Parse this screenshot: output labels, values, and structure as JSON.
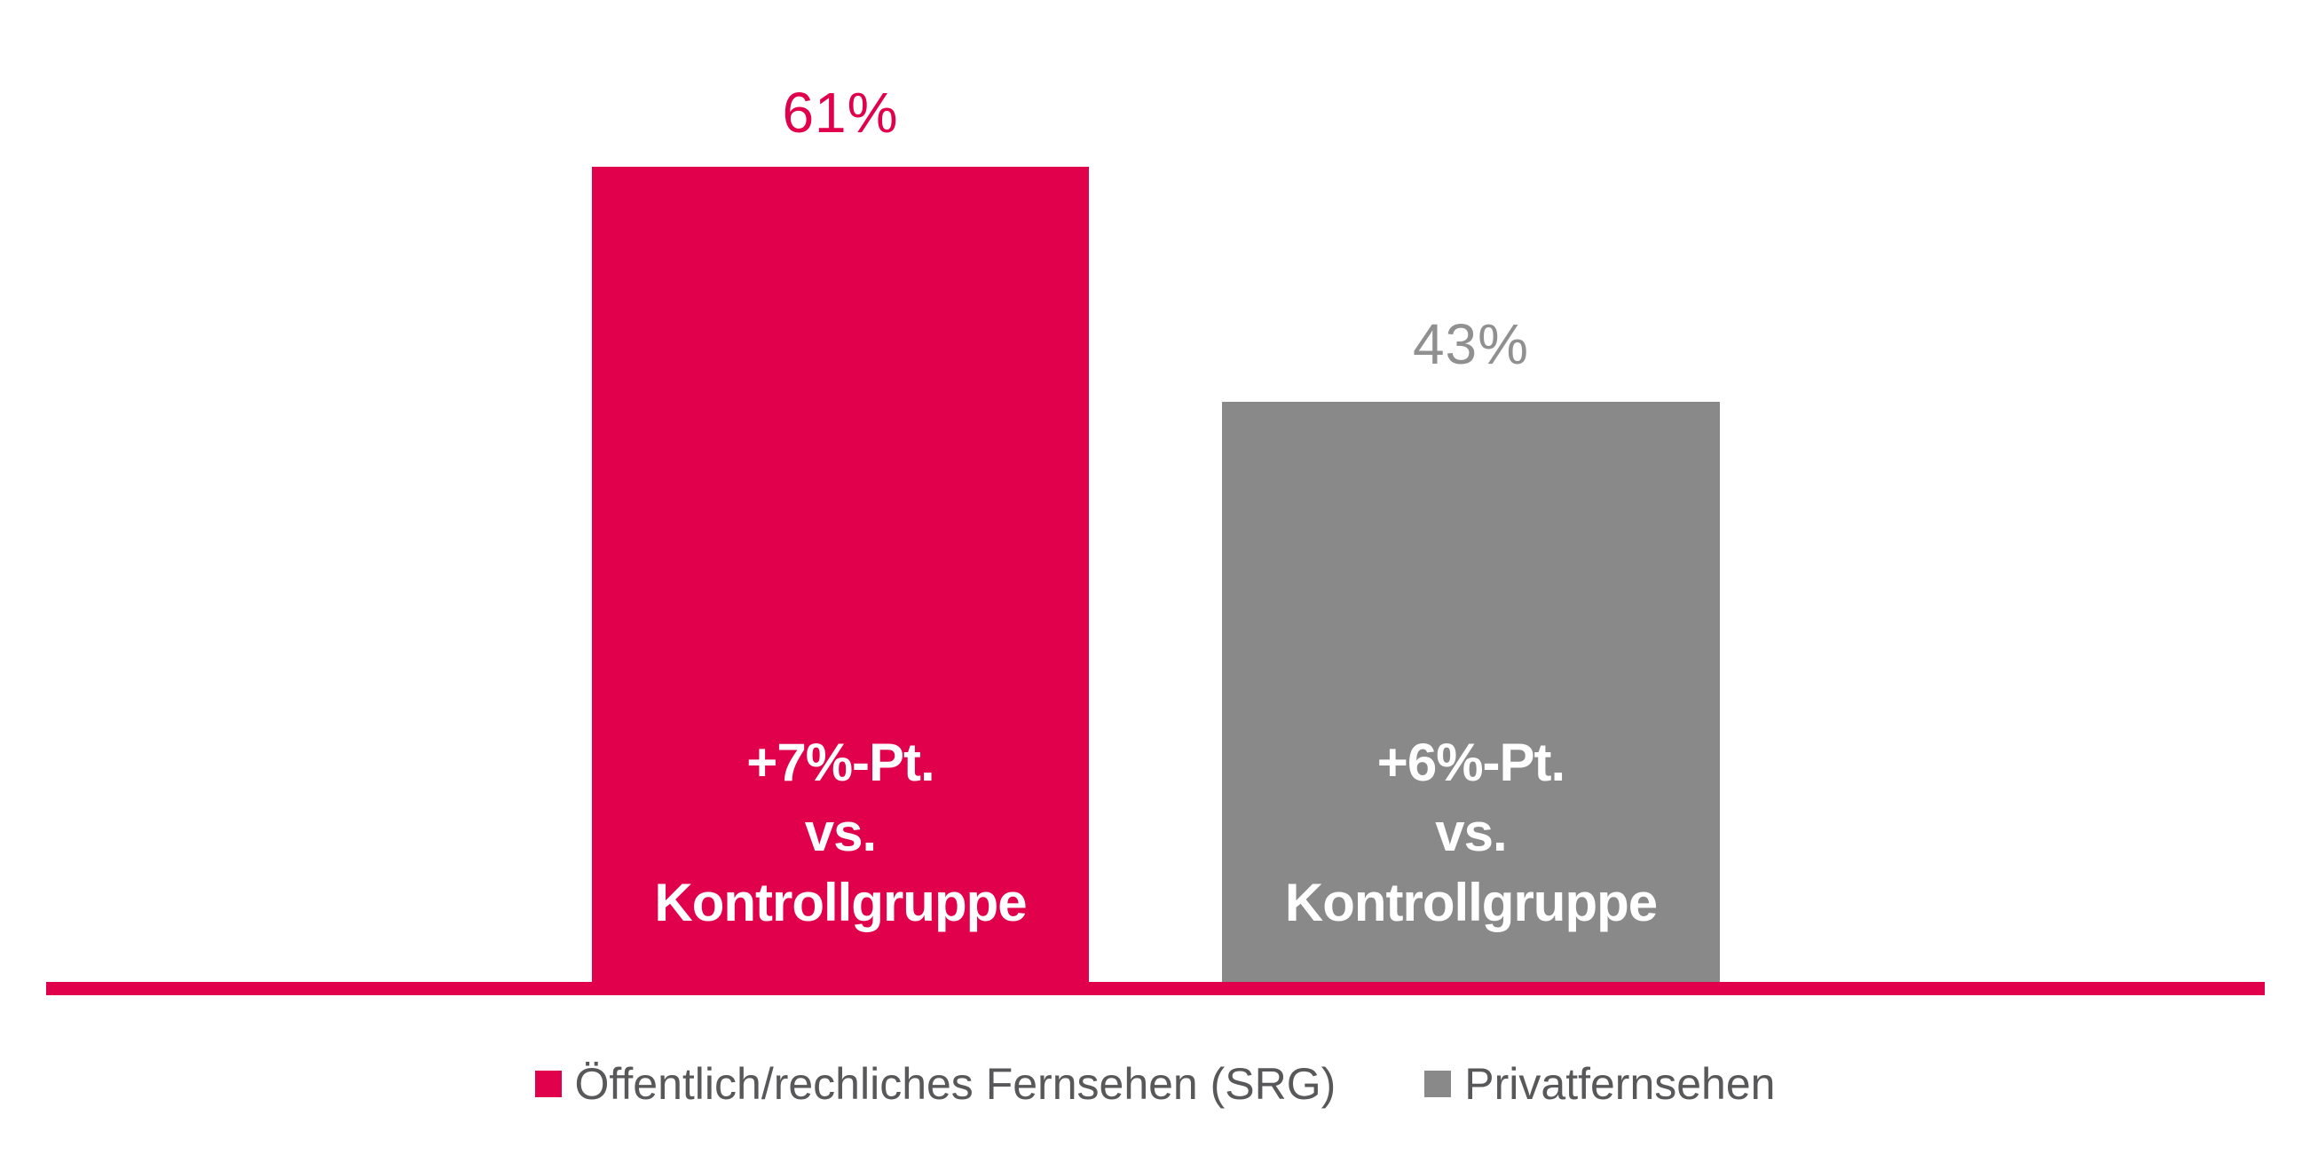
{
  "chart_data": {
    "type": "bar",
    "title": "",
    "unit": "%",
    "categories": [
      "Öffentlich/rechliches Fernsehen (SRG)",
      "Privatfernsehen"
    ],
    "values": [
      61,
      43
    ],
    "bars": [
      {
        "category": "Öffentlich/rechliches Fernsehen (SRG)",
        "value": 61,
        "value_label": "61%",
        "annotation_lines": [
          "+7%-Pt.",
          "vs.",
          "Kontrollgruppe"
        ],
        "color": "#E0004B",
        "value_label_color": "#E0004B",
        "annotation_color": "#FFFFFF"
      },
      {
        "category": "Privatfernsehen",
        "value": 43,
        "value_label": "43%",
        "annotation_lines": [
          "+6%-Pt.",
          "vs.",
          "Kontrollgruppe"
        ],
        "color": "#898989",
        "value_label_color": "#909090",
        "annotation_color": "#FFFFFF"
      }
    ],
    "axis": {
      "baseline_color": "#E0004B",
      "gridlines": false,
      "y_axis_visible": false,
      "ylim": [
        0,
        65
      ]
    },
    "legend": {
      "position": "bottom",
      "text_color": "#58585A",
      "items": [
        {
          "label": "Öffentlich/rechliches Fernsehen (SRG)",
          "color": "#E0004B"
        },
        {
          "label": "Privatfernsehen",
          "color": "#898989"
        }
      ]
    }
  }
}
